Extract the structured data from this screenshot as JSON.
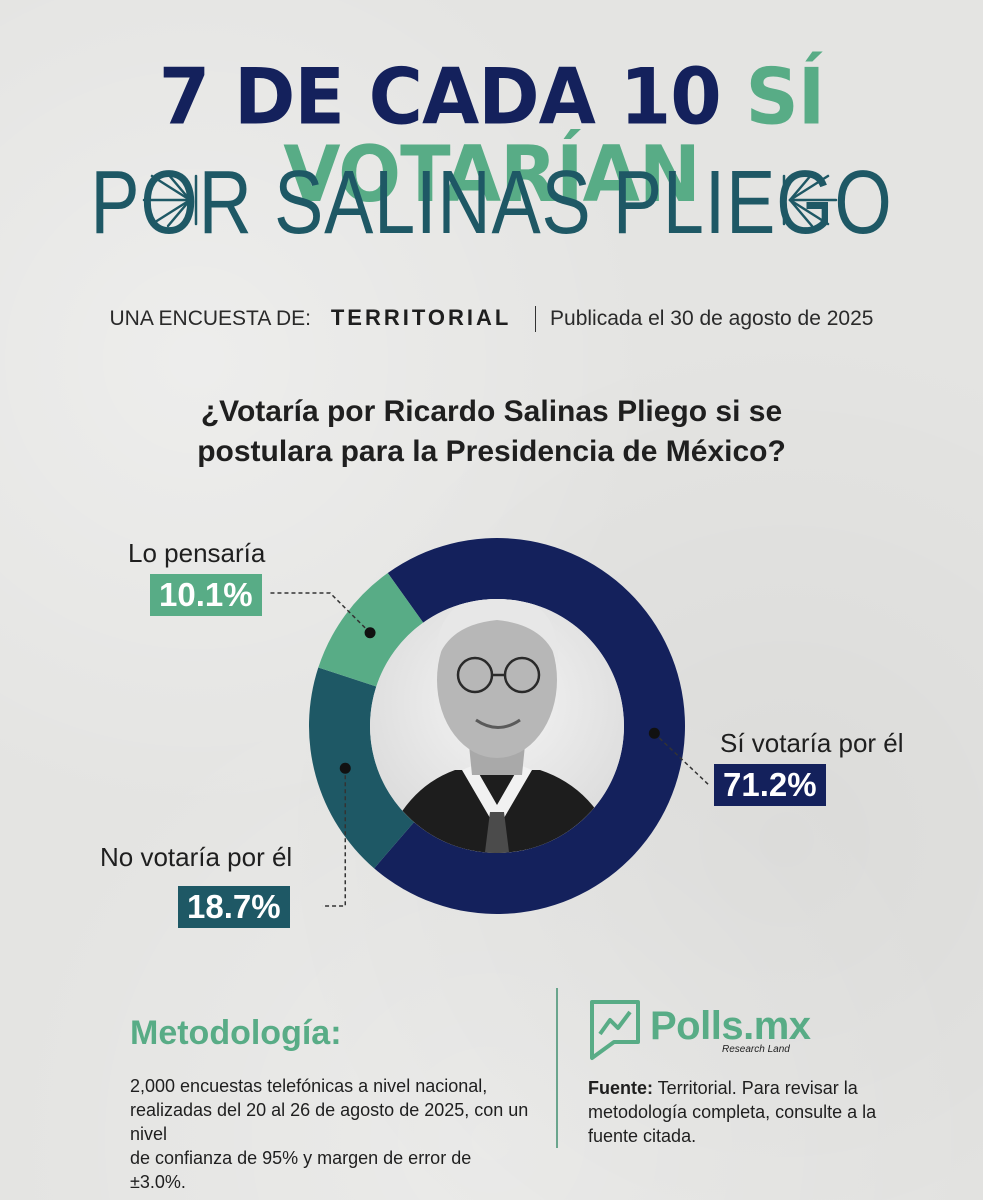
{
  "title": {
    "part1": "7 DE CADA 10",
    "part2": "SÍ VOTARÍAN",
    "line2": "POR SALINAS PLIEGO"
  },
  "source_row": {
    "label": "UNA ENCUESTA DE:",
    "brand": "TERRITORIAL",
    "published": "Publicada el 30 de agosto de 2025"
  },
  "question": {
    "line1": "¿Votaría por Ricardo Salinas Pliego si se",
    "line2": "postulara para la Presidencia de México?"
  },
  "chart_data": {
    "type": "pie",
    "donut": true,
    "title": "¿Votaría por Ricardo Salinas Pliego si se postulara para la Presidencia de México?",
    "slices": [
      {
        "label": "Sí votaría por él",
        "value": 71.2,
        "display": "71.2%",
        "color": "#14215c"
      },
      {
        "label": "No votaría por él",
        "value": 18.7,
        "display": "18.7%",
        "color": "#1e5865"
      },
      {
        "label": "Lo pensaría",
        "value": 10.1,
        "display": "10.1%",
        "color": "#58ac86"
      }
    ]
  },
  "methodology": {
    "title": "Metodología:",
    "line1": "2,000 encuestas telefónicas a nivel nacional,",
    "line2": "realizadas del 20 al 26 de agosto de 2025, con un nivel",
    "line3": "de confianza de 95% y margen de error de ±3.0%."
  },
  "polls": {
    "name": "Polls.mx",
    "sub": "Research Land"
  },
  "source": {
    "label": "Fuente:",
    "line1": " Territorial. Para revisar la",
    "line2": "metodología completa, consulte a la",
    "line3": "fuente citada."
  },
  "colors": {
    "navy": "#14215c",
    "teal": "#1e5865",
    "green": "#58ac86",
    "background": "#e4e4e2"
  }
}
